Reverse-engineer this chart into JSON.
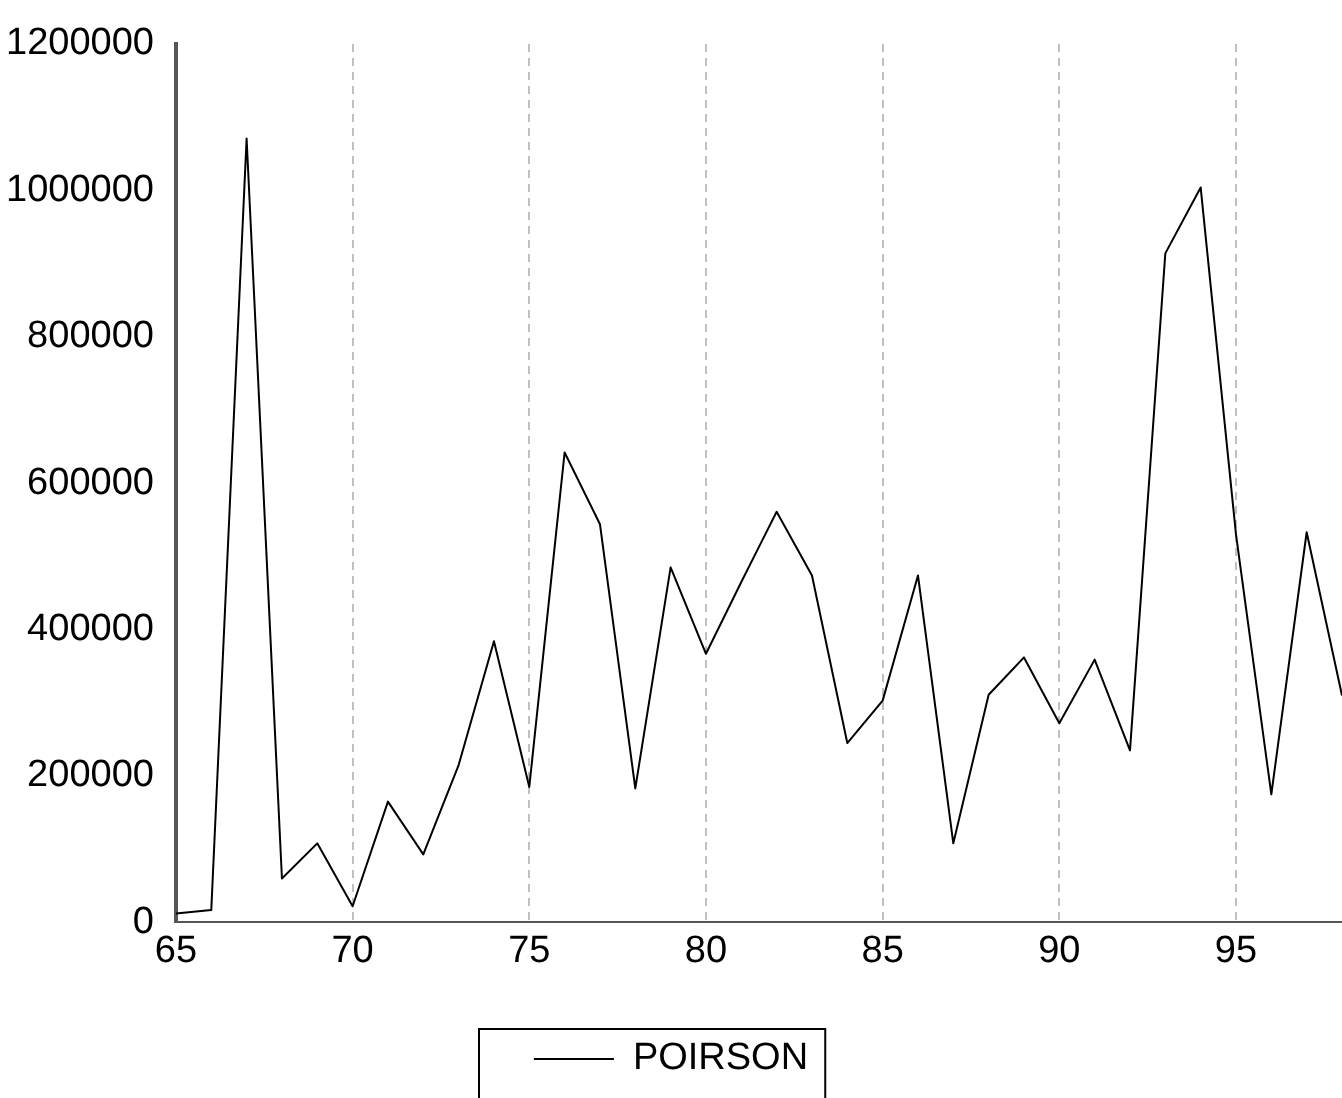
{
  "chart_data": {
    "type": "line",
    "x": [
      65,
      66,
      67,
      68,
      69,
      70,
      71,
      72,
      73,
      74,
      75,
      76,
      77,
      78,
      79,
      80,
      81,
      82,
      83,
      84,
      85,
      86,
      87,
      88,
      89,
      90,
      91,
      92,
      93,
      94,
      95,
      96,
      97,
      98
    ],
    "series": [
      {
        "name": "POIRSON",
        "color": "#000000",
        "values": [
          12000,
          17000,
          1071000,
          60000,
          108000,
          22000,
          165000,
          93000,
          215000,
          384000,
          185000,
          642000,
          544000,
          183000,
          485000,
          367000,
          465000,
          561000,
          474000,
          245000,
          303000,
          474000,
          108000,
          311000,
          362000,
          272000,
          359000,
          235000,
          914000,
          1004000,
          530000,
          175000,
          533000,
          310000
        ]
      }
    ],
    "xlim": [
      65,
      98
    ],
    "xticks": [
      65,
      70,
      75,
      80,
      85,
      90,
      95
    ],
    "ylim": [
      0,
      1200000
    ],
    "yticks": [
      0,
      200000,
      400000,
      600000,
      800000,
      1000000,
      1200000
    ],
    "grid": "x",
    "legend": "bottom",
    "marker": "none",
    "line_style": "solid"
  }
}
